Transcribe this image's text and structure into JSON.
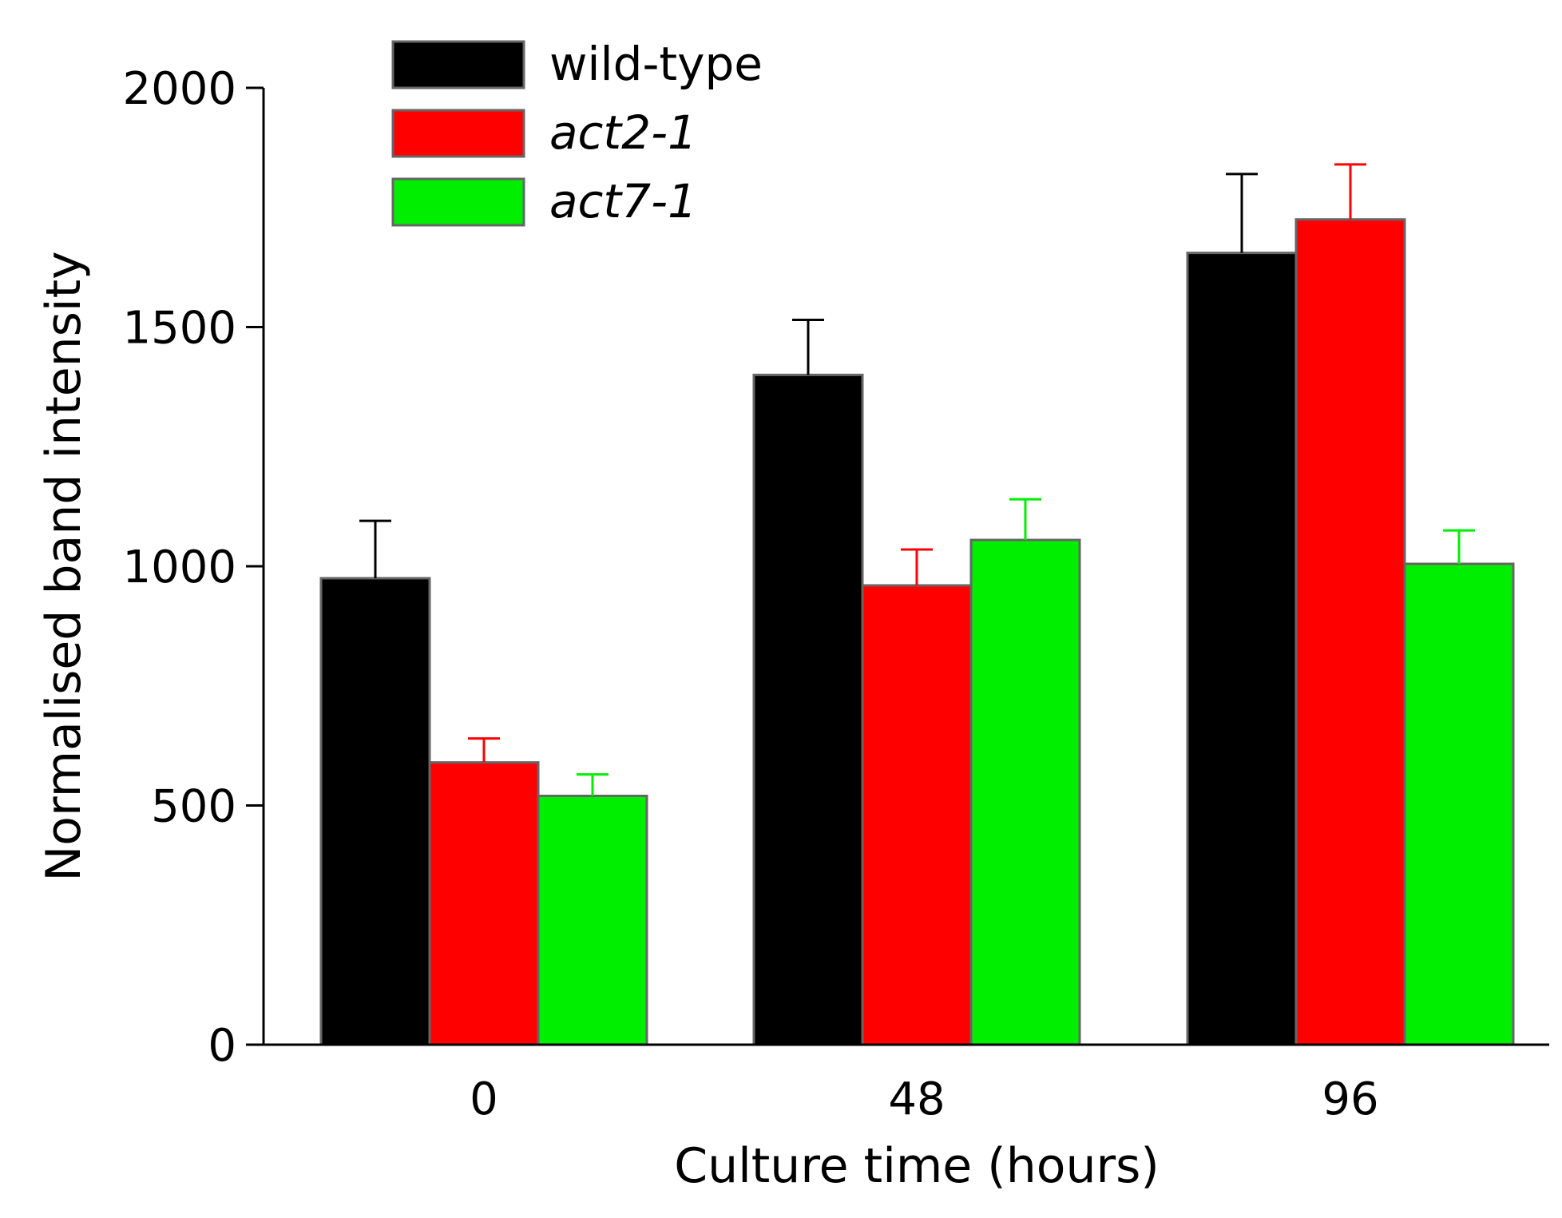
{
  "chart_data": {
    "type": "bar",
    "title": "",
    "xlabel": "Culture time (hours)",
    "ylabel": "Normalised band intensity",
    "categories": [
      "0",
      "48",
      "96"
    ],
    "ylim": [
      0,
      2000
    ],
    "yticks": [
      0,
      500,
      1000,
      1500,
      2000
    ],
    "grid": false,
    "legend_position": "top-left",
    "series": [
      {
        "name": "wild-type",
        "italic": false,
        "color": "#000000",
        "values": [
          975,
          1400,
          1655
        ],
        "errors": [
          120,
          115,
          165
        ]
      },
      {
        "name": "act2-1",
        "italic": true,
        "color": "#ff0000",
        "values": [
          590,
          960,
          1725
        ],
        "errors": [
          50,
          75,
          115
        ]
      },
      {
        "name": "act7-1",
        "italic": true,
        "color": "#00ee00",
        "values": [
          520,
          1055,
          1005
        ],
        "errors": [
          45,
          85,
          70
        ]
      }
    ]
  }
}
